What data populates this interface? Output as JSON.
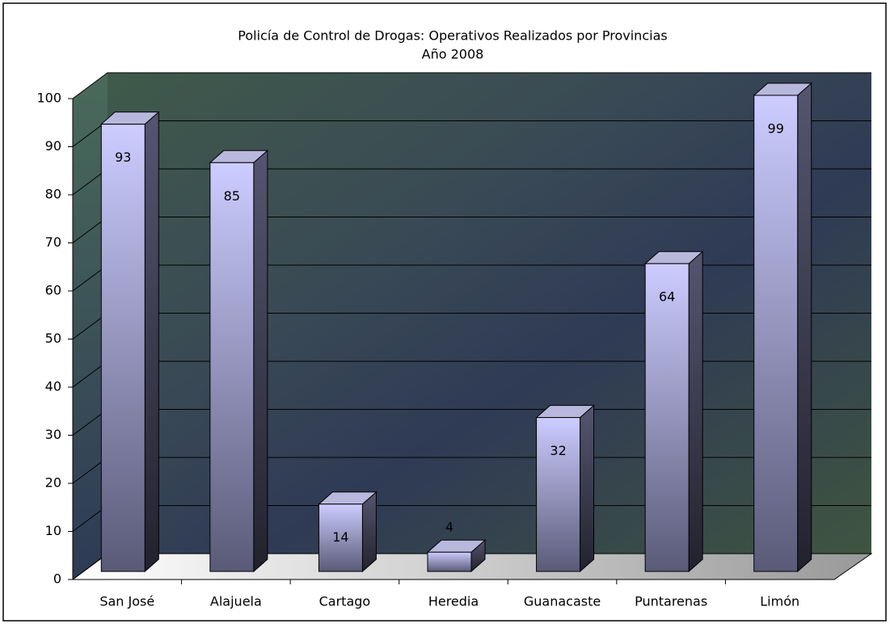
{
  "chart_data": {
    "type": "bar3d",
    "title": "Policía de Control de Drogas: Operativos Realizados por Provincias",
    "subtitle": "Año 2008",
    "categories": [
      "San José",
      "Alajuela",
      "Cartago",
      "Heredia",
      "Guanacaste",
      "Puntarenas",
      "Limón"
    ],
    "values": [
      93,
      85,
      14,
      4,
      32,
      64,
      99
    ],
    "color": "#ccccff",
    "ylim": [
      0,
      100
    ],
    "yticks": [
      0,
      10,
      20,
      30,
      40,
      50,
      60,
      70,
      80,
      90,
      100
    ],
    "grid": true
  }
}
